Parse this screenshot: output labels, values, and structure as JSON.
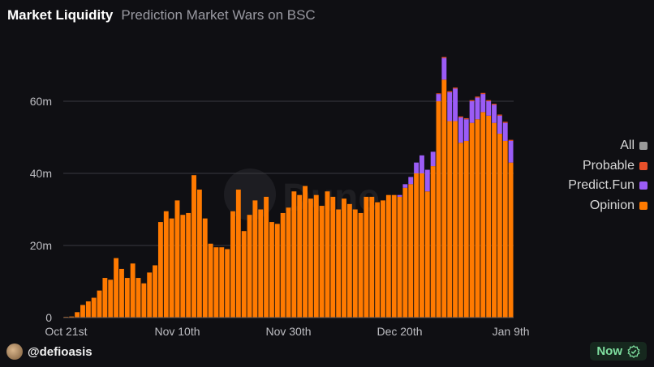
{
  "header": {
    "title": "Market Liquidity",
    "subtitle": "Prediction Market Wars on BSC"
  },
  "watermark": "Dune",
  "footer": {
    "handle": "@defioasis",
    "status": "Now"
  },
  "colors": {
    "opinion": "#ff7a00",
    "predict_fun": "#9b5cf6",
    "probable": "#e8502a",
    "all": "#9a9a9a",
    "grid": "#3a3a40",
    "background": "#0f0f13"
  },
  "chart_data": {
    "type": "bar",
    "stacked": true,
    "title": "Market Liquidity",
    "subtitle": "Prediction Market Wars on BSC",
    "xlabel": "",
    "ylabel": "",
    "ylim": [
      0,
      80000000
    ],
    "y_ticks": [
      0,
      20000000,
      40000000,
      60000000
    ],
    "y_tick_labels": [
      "0",
      "20m",
      "40m",
      "60m"
    ],
    "x_tick_labels": [
      "Oct 21st",
      "Nov 10th",
      "Nov 30th",
      "Dec 20th",
      "Jan 9th"
    ],
    "x_tick_indices": [
      0,
      20,
      40,
      60,
      80
    ],
    "grid": true,
    "legend_position": "right",
    "legend": [
      "All",
      "Probable",
      "Predict.Fun",
      "Opinion"
    ],
    "units": "millions USD",
    "categories": [
      "Oct 21",
      "Oct 22",
      "Oct 23",
      "Oct 24",
      "Oct 25",
      "Oct 26",
      "Oct 27",
      "Oct 28",
      "Oct 29",
      "Oct 30",
      "Oct 31",
      "Nov 1",
      "Nov 2",
      "Nov 3",
      "Nov 4",
      "Nov 5",
      "Nov 6",
      "Nov 7",
      "Nov 8",
      "Nov 9",
      "Nov 10",
      "Nov 11",
      "Nov 12",
      "Nov 13",
      "Nov 14",
      "Nov 15",
      "Nov 16",
      "Nov 17",
      "Nov 18",
      "Nov 19",
      "Nov 20",
      "Nov 21",
      "Nov 22",
      "Nov 23",
      "Nov 24",
      "Nov 25",
      "Nov 26",
      "Nov 27",
      "Nov 28",
      "Nov 29",
      "Nov 30",
      "Dec 1",
      "Dec 2",
      "Dec 3",
      "Dec 4",
      "Dec 5",
      "Dec 6",
      "Dec 7",
      "Dec 8",
      "Dec 9",
      "Dec 10",
      "Dec 11",
      "Dec 12",
      "Dec 13",
      "Dec 14",
      "Dec 15",
      "Dec 16",
      "Dec 17",
      "Dec 18",
      "Dec 19",
      "Dec 20",
      "Dec 21",
      "Dec 22",
      "Dec 23",
      "Dec 24",
      "Dec 25",
      "Dec 26",
      "Dec 27",
      "Dec 28",
      "Dec 29",
      "Dec 30",
      "Dec 31",
      "Jan 1",
      "Jan 2",
      "Jan 3",
      "Jan 4",
      "Jan 5",
      "Jan 6",
      "Jan 7",
      "Jan 8",
      "Jan 9"
    ],
    "series": [
      {
        "name": "Opinion",
        "color": "#ff7a00",
        "values": [
          0.2,
          0.3,
          1.5,
          3.5,
          4.5,
          5.5,
          7.5,
          11,
          10.5,
          16.5,
          13.5,
          11,
          15,
          11,
          9.5,
          12.5,
          14.5,
          26.5,
          29.5,
          27.5,
          32.5,
          28.5,
          29,
          39.5,
          35.5,
          27.5,
          20.5,
          19.5,
          19.5,
          19,
          29.5,
          35.5,
          24,
          28.5,
          32.5,
          30,
          33.5,
          26.5,
          26,
          29,
          30.5,
          35,
          34,
          36.5,
          33,
          34,
          31,
          35,
          33.5,
          30,
          33,
          31.5,
          30,
          29,
          33.5,
          33.5,
          32,
          32.5,
          34,
          34,
          33.5,
          36,
          37,
          40,
          40,
          35,
          42,
          60,
          66,
          54.5,
          54.5,
          48.5,
          49,
          54,
          55,
          57,
          56,
          54,
          51,
          49,
          43
        ]
      },
      {
        "name": "Predict.Fun",
        "color": "#9b5cf6",
        "values": [
          0,
          0,
          0,
          0,
          0,
          0,
          0,
          0,
          0,
          0,
          0,
          0,
          0,
          0,
          0,
          0,
          0,
          0,
          0,
          0,
          0,
          0,
          0,
          0,
          0,
          0,
          0,
          0,
          0,
          0,
          0,
          0,
          0,
          0,
          0,
          0,
          0,
          0,
          0,
          0,
          0,
          0,
          0,
          0,
          0,
          0,
          0,
          0,
          0,
          0,
          0,
          0,
          0,
          0,
          0,
          0,
          0,
          0,
          0,
          0,
          0.5,
          1,
          2,
          3,
          5,
          6,
          4,
          2,
          6,
          8,
          9,
          7,
          6,
          6,
          6,
          5,
          4,
          5,
          5,
          5,
          6
        ]
      },
      {
        "name": "Probable",
        "color": "#e8502a",
        "values": [
          0,
          0,
          0,
          0,
          0,
          0,
          0,
          0,
          0,
          0,
          0,
          0,
          0,
          0,
          0,
          0,
          0,
          0,
          0,
          0,
          0,
          0,
          0,
          0,
          0,
          0,
          0,
          0,
          0,
          0,
          0,
          0,
          0,
          0,
          0,
          0,
          0,
          0,
          0,
          0,
          0,
          0,
          0,
          0,
          0,
          0,
          0,
          0,
          0,
          0,
          0,
          0,
          0,
          0,
          0,
          0,
          0,
          0,
          0,
          0,
          0,
          0,
          0,
          0,
          0,
          0,
          0,
          0.2,
          0.3,
          0.3,
          0.3,
          0.3,
          0.3,
          0.3,
          0.3,
          0.3,
          0.3,
          0.3,
          0.3,
          0.3,
          0.3
        ]
      }
    ]
  }
}
